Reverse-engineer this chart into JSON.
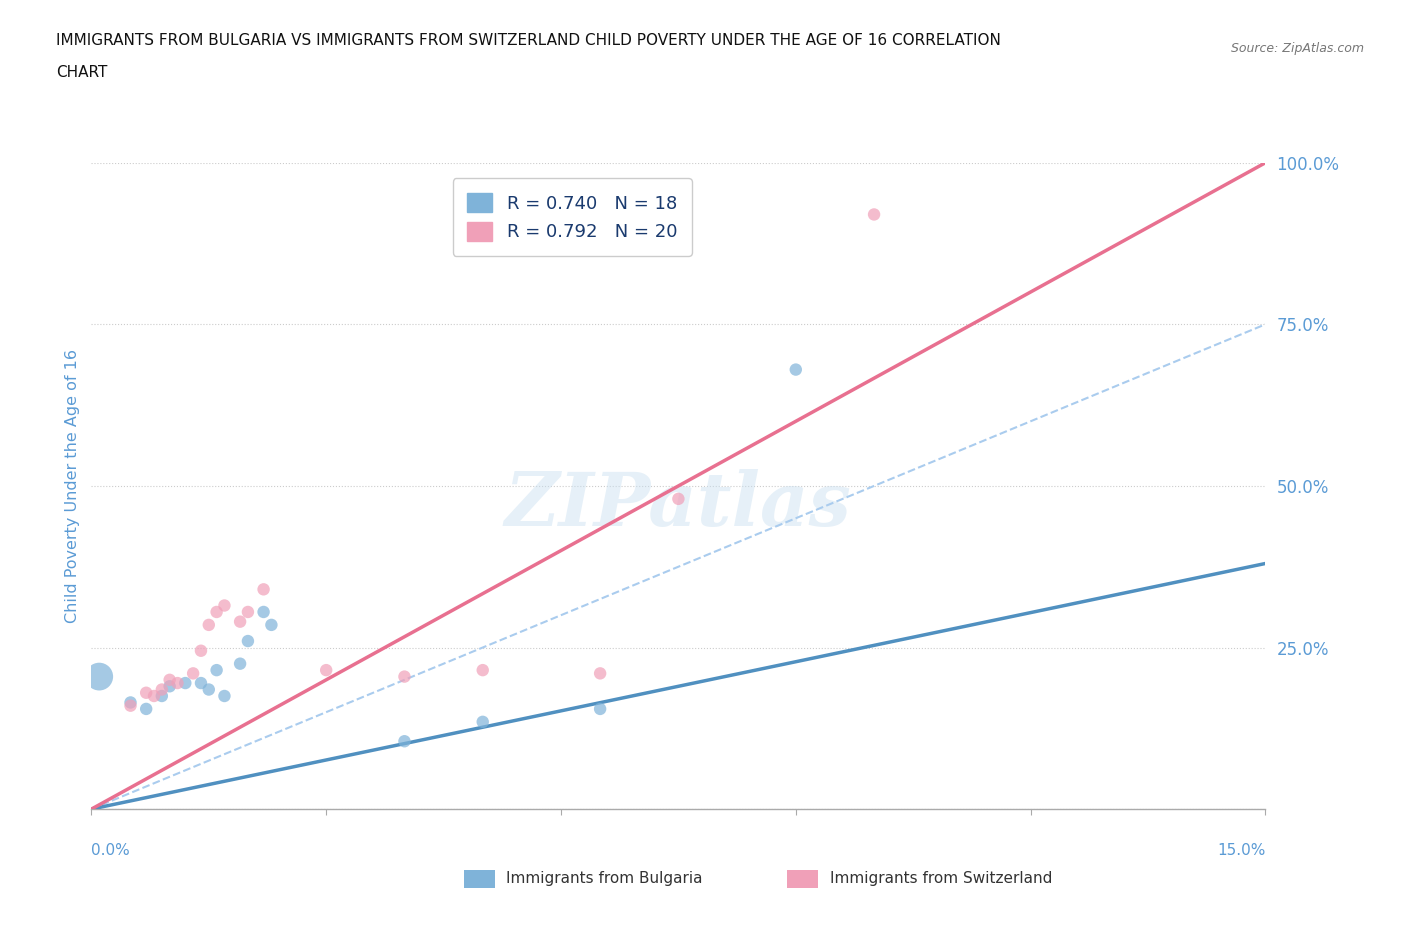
{
  "title_line1": "IMMIGRANTS FROM BULGARIA VS IMMIGRANTS FROM SWITZERLAND CHILD POVERTY UNDER THE AGE OF 16 CORRELATION",
  "title_line2": "CHART",
  "source": "Source: ZipAtlas.com",
  "ylabel": "Child Poverty Under the Age of 16",
  "xlim": [
    0,
    0.15
  ],
  "ylim": [
    0,
    1.0
  ],
  "ytick_positions": [
    0.0,
    0.25,
    0.5,
    0.75,
    1.0
  ],
  "ytick_labels": [
    "",
    "25.0%",
    "50.0%",
    "75.0%",
    "100.0%"
  ],
  "xtick_positions": [
    0.0,
    0.03,
    0.06,
    0.09,
    0.12,
    0.15
  ],
  "bulgaria_color": "#7fb3d9",
  "switzerland_color": "#f0a0b8",
  "bulgaria_line_color": "#5090c0",
  "switzerland_line_color": "#e87090",
  "watermark": "ZIPatlas",
  "bulgaria_R": 0.74,
  "bulgaria_N": 18,
  "switzerland_R": 0.792,
  "switzerland_N": 20,
  "bg_color": "#ffffff",
  "grid_color": "#cccccc",
  "axis_label_color": "#5b9bd5",
  "tick_label_color": "#5b9bd5",
  "title_color": "#111111",
  "ref_line_color": "#aaccee",
  "bulgaria_points": [
    [
      0.001,
      0.205,
      400
    ],
    [
      0.005,
      0.165,
      80
    ],
    [
      0.007,
      0.155,
      80
    ],
    [
      0.009,
      0.175,
      80
    ],
    [
      0.01,
      0.19,
      80
    ],
    [
      0.012,
      0.195,
      80
    ],
    [
      0.014,
      0.195,
      80
    ],
    [
      0.015,
      0.185,
      80
    ],
    [
      0.016,
      0.215,
      80
    ],
    [
      0.017,
      0.175,
      80
    ],
    [
      0.019,
      0.225,
      80
    ],
    [
      0.02,
      0.26,
      80
    ],
    [
      0.022,
      0.305,
      80
    ],
    [
      0.023,
      0.285,
      80
    ],
    [
      0.04,
      0.105,
      80
    ],
    [
      0.05,
      0.135,
      80
    ],
    [
      0.065,
      0.155,
      80
    ],
    [
      0.09,
      0.68,
      80
    ]
  ],
  "switzerland_points": [
    [
      0.005,
      0.16,
      80
    ],
    [
      0.007,
      0.18,
      80
    ],
    [
      0.008,
      0.175,
      80
    ],
    [
      0.009,
      0.185,
      80
    ],
    [
      0.01,
      0.2,
      80
    ],
    [
      0.011,
      0.195,
      80
    ],
    [
      0.013,
      0.21,
      80
    ],
    [
      0.014,
      0.245,
      80
    ],
    [
      0.015,
      0.285,
      80
    ],
    [
      0.016,
      0.305,
      80
    ],
    [
      0.017,
      0.315,
      80
    ],
    [
      0.019,
      0.29,
      80
    ],
    [
      0.02,
      0.305,
      80
    ],
    [
      0.022,
      0.34,
      80
    ],
    [
      0.03,
      0.215,
      80
    ],
    [
      0.04,
      0.205,
      80
    ],
    [
      0.05,
      0.215,
      80
    ],
    [
      0.065,
      0.21,
      80
    ],
    [
      0.075,
      0.48,
      80
    ],
    [
      0.1,
      0.92,
      80
    ]
  ],
  "bulgaria_trend": [
    0.0,
    0.0,
    0.15,
    0.38
  ],
  "switzerland_trend": [
    0.0,
    0.0,
    0.15,
    1.0
  ],
  "ref_line": [
    0.0,
    0.0,
    0.15,
    0.75
  ]
}
